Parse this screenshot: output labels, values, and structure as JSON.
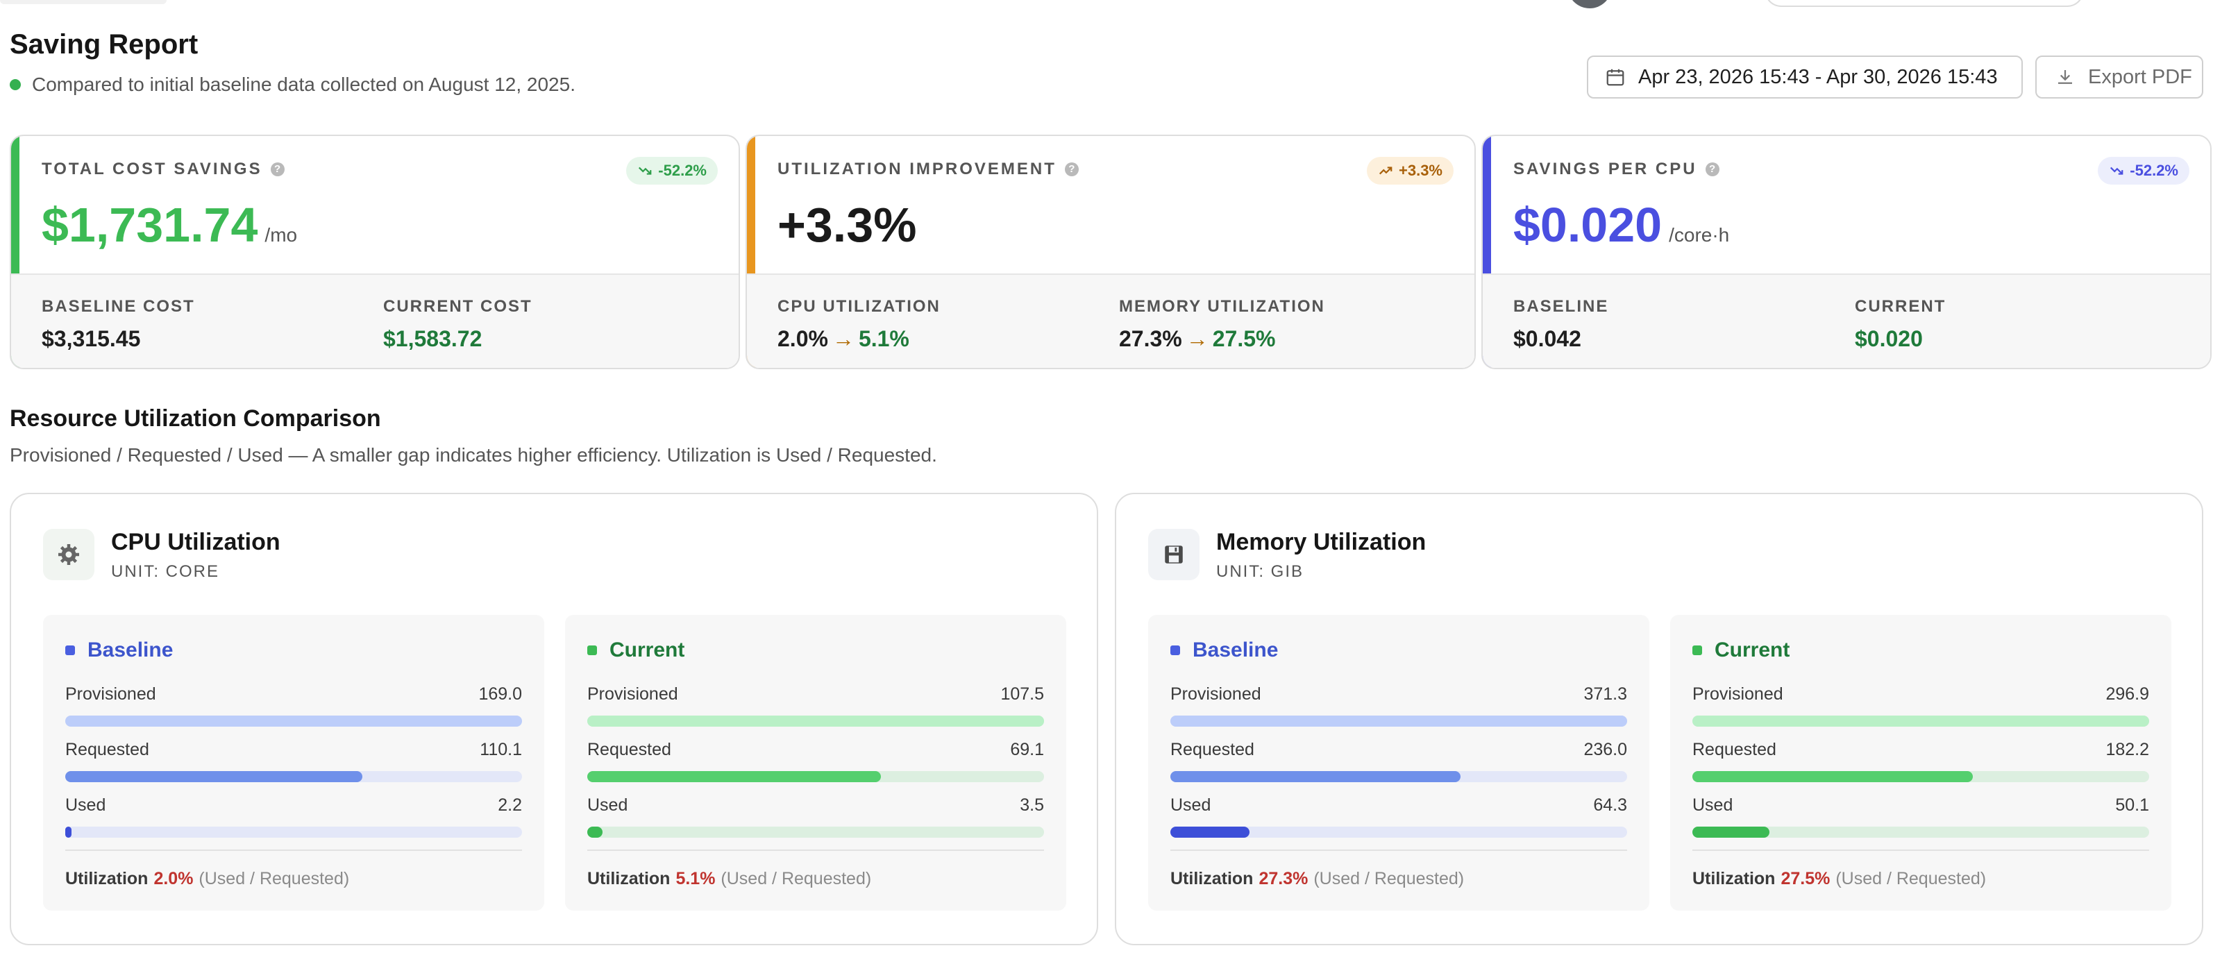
{
  "header": {
    "title": "Saving Report",
    "subtitle": "Compared to initial baseline data collected on August 12, 2025.",
    "date_range": "Apr 23, 2026 15:43 - Apr 30, 2026 15:43",
    "export_label": "Export PDF"
  },
  "colors": {
    "green": "#3cba54",
    "orange": "#e8961f",
    "blue": "#4a4fe0",
    "red": "#c0342f"
  },
  "kpis": [
    {
      "label": "TOTAL COST SAVINGS",
      "badge": "-52.2%",
      "value": "$1,731.74",
      "unit": "/mo",
      "sub1_label": "BASELINE COST",
      "sub1_value": "$3,315.45",
      "sub2_label": "CURRENT COST",
      "sub2_value": "$1,583.72"
    },
    {
      "label": "UTILIZATION IMPROVEMENT",
      "badge": "+3.3%",
      "value": "+3.3%",
      "sub1_label": "CPU UTILIZATION",
      "sub1_from": "2.0%",
      "sub1_to": "5.1%",
      "sub2_label": "MEMORY UTILIZATION",
      "sub2_from": "27.3%",
      "sub2_to": "27.5%"
    },
    {
      "label": "SAVINGS PER CPU",
      "badge": "-52.2%",
      "value": "$0.020",
      "unit": "/core·h",
      "sub1_label": "BASELINE",
      "sub1_value": "$0.042",
      "sub2_label": "CURRENT",
      "sub2_value": "$0.020"
    }
  ],
  "section": {
    "title": "Resource Utilization Comparison",
    "desc": "Provisioned / Requested / Used — A smaller gap indicates higher efficiency. Utilization is Used / Requested."
  },
  "labels": {
    "provisioned": "Provisioned",
    "requested": "Requested",
    "used": "Used",
    "utilization": "Utilization",
    "utilization_hint": "(Used / Requested)"
  },
  "cpu": {
    "title": "CPU Utilization",
    "unit": "UNIT: CORE",
    "baseline": {
      "title": "Baseline",
      "provisioned": "169.0",
      "requested": "110.1",
      "used": "2.2",
      "provisioned_fraction": 1.0,
      "requested_fraction": 0.651,
      "used_fraction": 0.013,
      "utilization": "2.0%"
    },
    "current": {
      "title": "Current",
      "provisioned": "107.5",
      "requested": "69.1",
      "used": "3.5",
      "provisioned_fraction": 1.0,
      "requested_fraction": 0.643,
      "used_fraction": 0.033,
      "utilization": "5.1%"
    }
  },
  "memory": {
    "title": "Memory Utilization",
    "unit": "UNIT: GIB",
    "baseline": {
      "title": "Baseline",
      "provisioned": "371.3",
      "requested": "236.0",
      "used": "64.3",
      "provisioned_fraction": 1.0,
      "requested_fraction": 0.636,
      "used_fraction": 0.173,
      "utilization": "27.3%"
    },
    "current": {
      "title": "Current",
      "provisioned": "296.9",
      "requested": "182.2",
      "used": "50.1",
      "provisioned_fraction": 1.0,
      "requested_fraction": 0.614,
      "used_fraction": 0.169,
      "utilization": "27.5%"
    }
  }
}
